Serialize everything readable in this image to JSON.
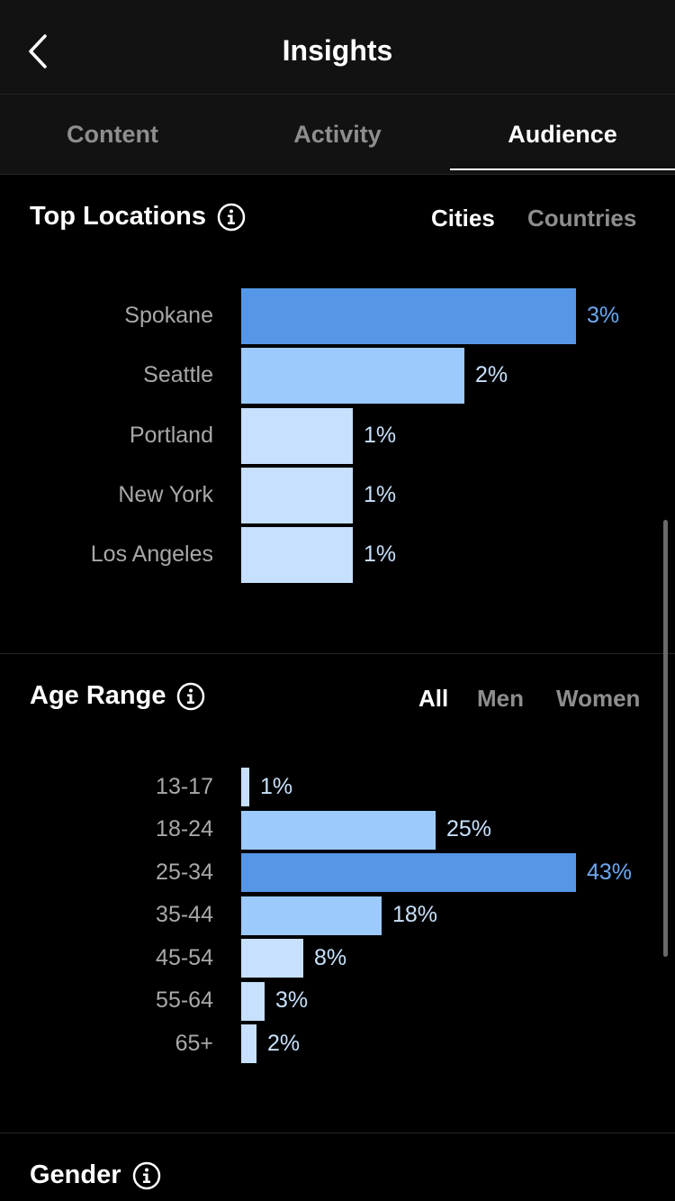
{
  "header": {
    "title": "Insights",
    "back_icon": "chevron-left-icon"
  },
  "tabs": [
    {
      "label": "Content",
      "active": false
    },
    {
      "label": "Activity",
      "active": false
    },
    {
      "label": "Audience",
      "active": true
    }
  ],
  "top_locations": {
    "title": "Top Locations",
    "filters": [
      {
        "label": "Cities",
        "active": true
      },
      {
        "label": "Countries",
        "active": false
      }
    ]
  },
  "age_range": {
    "title": "Age Range",
    "filters": [
      {
        "label": "All",
        "active": true
      },
      {
        "label": "Men",
        "active": false
      },
      {
        "label": "Women",
        "active": false
      }
    ]
  },
  "gender": {
    "title": "Gender"
  },
  "colors": {
    "bar_strong": "#5596e6",
    "bar_medium": "#9ccafc",
    "bar_light": "#c6e0fd",
    "value_strong": "#6ea8ee",
    "value_light": "#c8e0fb"
  },
  "chart_data": [
    {
      "type": "bar",
      "orientation": "horizontal",
      "title": "Top Locations",
      "categories": [
        "Spokane",
        "Seattle",
        "Portland",
        "New York",
        "Los Angeles"
      ],
      "values": [
        3,
        2,
        1,
        1,
        1
      ],
      "value_labels": [
        "3%",
        "2%",
        "1%",
        "1%",
        "1%"
      ],
      "xlim": [
        0,
        3
      ]
    },
    {
      "type": "bar",
      "orientation": "horizontal",
      "title": "Age Range",
      "categories": [
        "13-17",
        "18-24",
        "25-34",
        "35-44",
        "45-54",
        "55-64",
        "65+"
      ],
      "values": [
        1,
        25,
        43,
        18,
        8,
        3,
        2
      ],
      "value_labels": [
        "1%",
        "25%",
        "43%",
        "18%",
        "8%",
        "3%",
        "2%"
      ],
      "xlim": [
        0,
        43
      ]
    }
  ]
}
